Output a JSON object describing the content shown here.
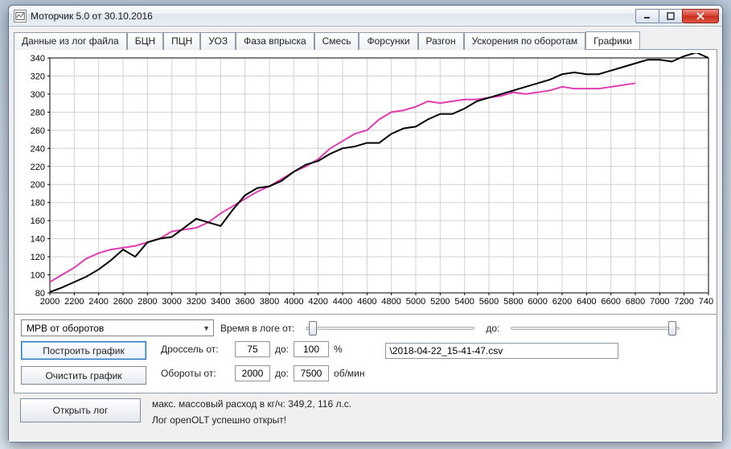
{
  "window": {
    "title": "Моторчик 5.0 от 30.10.2016"
  },
  "tabs": [
    "Данные из лог файла",
    "БЦН",
    "ПЦН",
    "УОЗ",
    "Фаза впрыска",
    "Смесь",
    "Форсунки",
    "Разгон",
    "Ускорения по оборотам",
    "Графики"
  ],
  "active_tab_index": 9,
  "chart": {
    "type": "line",
    "background_color": "#ffffff",
    "grid_color": "#d0d0d0",
    "axis_color": "#000000",
    "tick_fontsize": 11,
    "line_width": 2,
    "x": {
      "min": 2000,
      "max": 7400,
      "tick_step": 200
    },
    "y": {
      "min": 80,
      "max": 340,
      "tick_step": 20
    },
    "series": [
      {
        "name": "series-pink",
        "color": "#e23bb0",
        "points": [
          [
            2000,
            92
          ],
          [
            2100,
            100
          ],
          [
            2200,
            108
          ],
          [
            2300,
            118
          ],
          [
            2400,
            124
          ],
          [
            2500,
            128
          ],
          [
            2600,
            130
          ],
          [
            2700,
            132
          ],
          [
            2800,
            136
          ],
          [
            2900,
            140
          ],
          [
            3000,
            148
          ],
          [
            3100,
            150
          ],
          [
            3200,
            152
          ],
          [
            3300,
            158
          ],
          [
            3400,
            168
          ],
          [
            3500,
            176
          ],
          [
            3600,
            184
          ],
          [
            3700,
            192
          ],
          [
            3800,
            198
          ],
          [
            3900,
            206
          ],
          [
            4000,
            214
          ],
          [
            4100,
            220
          ],
          [
            4200,
            228
          ],
          [
            4300,
            240
          ],
          [
            4400,
            248
          ],
          [
            4500,
            256
          ],
          [
            4600,
            260
          ],
          [
            4700,
            272
          ],
          [
            4800,
            280
          ],
          [
            4900,
            282
          ],
          [
            5000,
            286
          ],
          [
            5100,
            292
          ],
          [
            5200,
            290
          ],
          [
            5300,
            292
          ],
          [
            5400,
            294
          ],
          [
            5500,
            294
          ],
          [
            5600,
            296
          ],
          [
            5700,
            298
          ],
          [
            5800,
            302
          ],
          [
            5900,
            300
          ],
          [
            6000,
            302
          ],
          [
            6100,
            304
          ],
          [
            6200,
            308
          ],
          [
            6300,
            306
          ],
          [
            6400,
            306
          ],
          [
            6500,
            306
          ],
          [
            6600,
            308
          ],
          [
            6700,
            310
          ],
          [
            6800,
            312
          ]
        ]
      },
      {
        "name": "series-black",
        "color": "#000000",
        "points": [
          [
            2000,
            81
          ],
          [
            2100,
            86
          ],
          [
            2200,
            92
          ],
          [
            2300,
            98
          ],
          [
            2400,
            106
          ],
          [
            2500,
            116
          ],
          [
            2600,
            128
          ],
          [
            2700,
            120
          ],
          [
            2800,
            136
          ],
          [
            2900,
            140
          ],
          [
            3000,
            142
          ],
          [
            3100,
            152
          ],
          [
            3200,
            162
          ],
          [
            3300,
            158
          ],
          [
            3400,
            154
          ],
          [
            3500,
            172
          ],
          [
            3600,
            188
          ],
          [
            3700,
            196
          ],
          [
            3800,
            198
          ],
          [
            3900,
            204
          ],
          [
            4000,
            214
          ],
          [
            4100,
            222
          ],
          [
            4200,
            226
          ],
          [
            4300,
            234
          ],
          [
            4400,
            240
          ],
          [
            4500,
            242
          ],
          [
            4600,
            246
          ],
          [
            4700,
            246
          ],
          [
            4800,
            256
          ],
          [
            4900,
            262
          ],
          [
            5000,
            264
          ],
          [
            5100,
            272
          ],
          [
            5200,
            278
          ],
          [
            5300,
            278
          ],
          [
            5400,
            284
          ],
          [
            5500,
            292
          ],
          [
            5600,
            296
          ],
          [
            5700,
            300
          ],
          [
            5800,
            304
          ],
          [
            5900,
            308
          ],
          [
            6000,
            312
          ],
          [
            6100,
            316
          ],
          [
            6200,
            322
          ],
          [
            6300,
            324
          ],
          [
            6400,
            322
          ],
          [
            6500,
            322
          ],
          [
            6600,
            326
          ],
          [
            6700,
            330
          ],
          [
            6800,
            334
          ],
          [
            6900,
            338
          ],
          [
            7000,
            338
          ],
          [
            7100,
            336
          ],
          [
            7200,
            342
          ],
          [
            7300,
            346
          ],
          [
            7400,
            340
          ]
        ]
      }
    ]
  },
  "controls": {
    "dropdown_selected": "МРВ от оборотов",
    "time_from_label": "Время в логе от:",
    "time_to_label": "до:",
    "slider1_pos": 0.02,
    "slider2_pos": 0.98,
    "build_button": "Построить график",
    "clear_button": "Очистить график",
    "throttle_label": "Дроссель от:",
    "throttle_from": "75",
    "throttle_to_label": "до:",
    "throttle_to": "100",
    "throttle_unit": "%",
    "rpm_label": "Обороты от:",
    "rpm_from": "2000",
    "rpm_to_label": "до:",
    "rpm_to": "7500",
    "rpm_unit": "об/мин",
    "file_path": "\\2018-04-22_15-41-47.csv"
  },
  "footer": {
    "open_button": "Открыть лог",
    "line1": "макс. массовый расход в кг/ч: 349,2, 116 л.с.",
    "line2": "Лог openOLT успешно открыт!"
  }
}
